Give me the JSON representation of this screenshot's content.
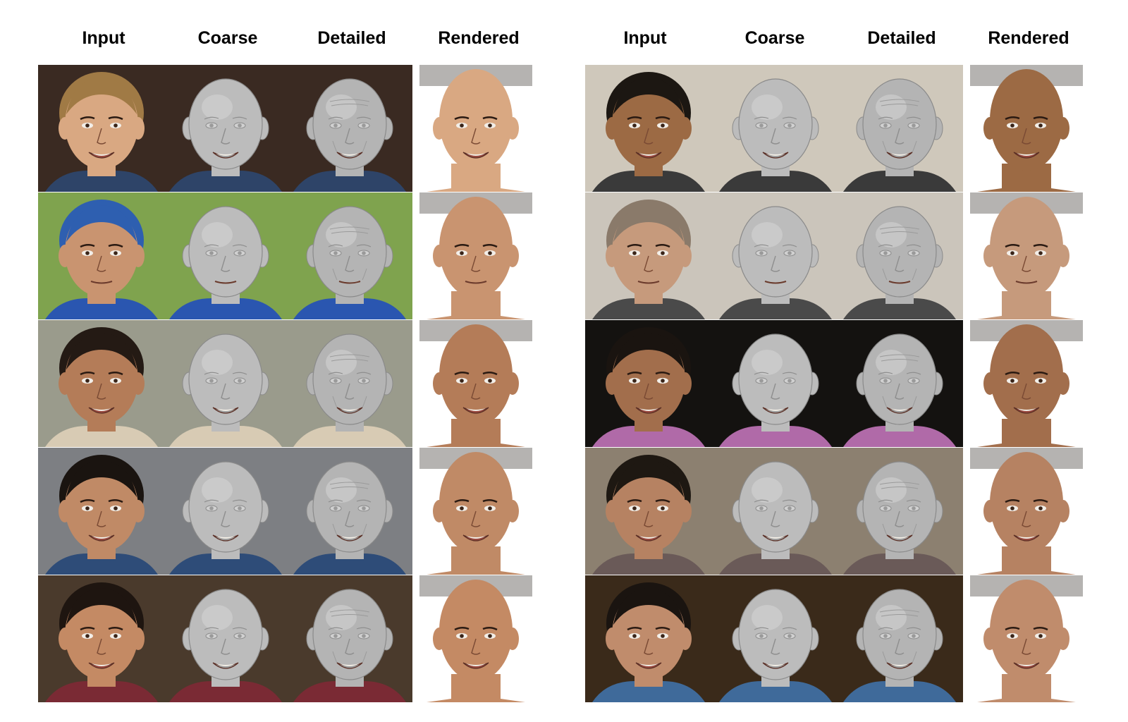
{
  "figure": {
    "left_panel": {
      "headers": [
        "Input",
        "Coarse",
        "Detailed",
        "Rendered"
      ]
    },
    "right_panel": {
      "headers": [
        "Input",
        "Coarse",
        "Detailed",
        "Rendered"
      ]
    },
    "rows": [
      {
        "left": {
          "bg": "#3a2a22",
          "skin": "#d9a882",
          "hair": "#a07a45",
          "shirt": "#2e4468",
          "expr": "smile"
        },
        "right": {
          "bg": "#cfc8bb",
          "skin": "#9c6a44",
          "hair": "#1c1712",
          "shirt": "#3a3a3a",
          "expr": "grin"
        }
      },
      {
        "left": {
          "bg": "#7fa34e",
          "skin": "#c99470",
          "hair": "#2e5fb0",
          "shirt": "#2a56b0",
          "expr": "neutral"
        },
        "right": {
          "bg": "#cbc5bb",
          "skin": "#c69a7c",
          "hair": "#8a7a6a",
          "shirt": "#4a4a4a",
          "expr": "neutral"
        }
      },
      {
        "left": {
          "bg": "#9a9b8c",
          "skin": "#b47c58",
          "hair": "#241a14",
          "shirt": "#d8cbb4",
          "expr": "grin"
        },
        "right": {
          "bg": "#141210",
          "skin": "#a26e4c",
          "hair": "#1a1410",
          "shirt": "#b06aa8",
          "expr": "grin"
        }
      },
      {
        "left": {
          "bg": "#7d7f83",
          "skin": "#c08a66",
          "hair": "#1a1410",
          "shirt": "#2e4c78",
          "expr": "grin"
        },
        "right": {
          "bg": "#8c8070",
          "skin": "#b68262",
          "hair": "#1e1812",
          "shirt": "#6a5a58",
          "expr": "grin"
        }
      },
      {
        "left": {
          "bg": "#4a3a2c",
          "skin": "#c48a64",
          "hair": "#1e1510",
          "shirt": "#7a2a34",
          "expr": "grin"
        },
        "right": {
          "bg": "#3a2a1a",
          "skin": "#c08c6c",
          "hair": "#1a1410",
          "shirt": "#3f6a9a",
          "expr": "smile"
        }
      }
    ],
    "column_types": [
      "input",
      "coarse",
      "detailed",
      "rendered"
    ]
  }
}
